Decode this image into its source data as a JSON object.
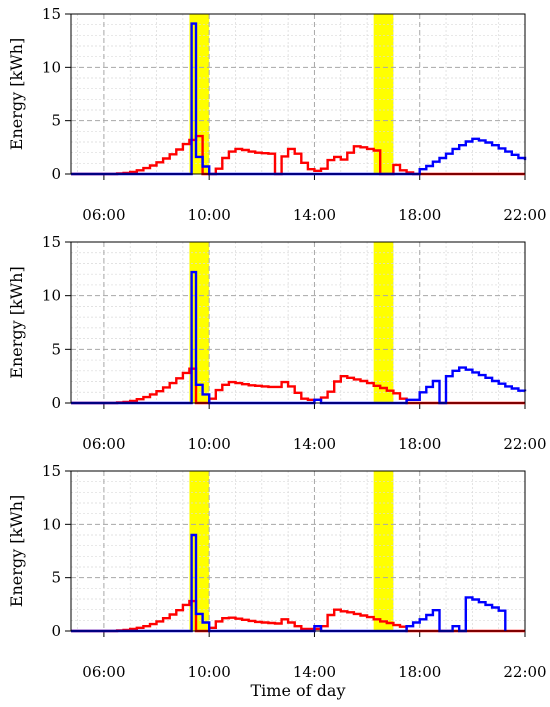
{
  "chart_data": [
    {
      "type": "line",
      "step": true,
      "title": "",
      "xlabel": "",
      "ylabel": "Energy [kWh]",
      "ylim": [
        0,
        15
      ],
      "yticks": [
        "0",
        "5",
        "10",
        "15"
      ],
      "xlim": [
        "04:45",
        "22:00"
      ],
      "xticks": [
        "06:00",
        "10:00",
        "14:00",
        "18:00",
        "22:00"
      ],
      "grid": true,
      "highlight_bands": [
        {
          "from": "09:15",
          "to": "10:00",
          "color": "#ffff00"
        },
        {
          "from": "16:15",
          "to": "17:00",
          "color": "#ffff00"
        }
      ],
      "series": [
        {
          "color": "#ff0000",
          "points": [
            [
              "04:45",
              0
            ],
            [
              "06:00",
              0
            ],
            [
              "06:30",
              0.05
            ],
            [
              "06:45",
              0.1
            ],
            [
              "07:00",
              0.2
            ],
            [
              "07:15",
              0.35
            ],
            [
              "07:30",
              0.55
            ],
            [
              "07:45",
              0.8
            ],
            [
              "08:00",
              1.1
            ],
            [
              "08:15",
              1.45
            ],
            [
              "08:30",
              1.85
            ],
            [
              "08:45",
              2.3
            ],
            [
              "09:00",
              2.8
            ],
            [
              "09:15",
              3.2
            ],
            [
              "09:30",
              3.55
            ],
            [
              "09:45",
              0
            ],
            [
              "10:15",
              0.5
            ],
            [
              "10:30",
              1.5
            ],
            [
              "10:45",
              2.1
            ],
            [
              "11:00",
              2.35
            ],
            [
              "11:15",
              2.25
            ],
            [
              "11:30",
              2.1
            ],
            [
              "11:45",
              2.0
            ],
            [
              "12:00",
              1.95
            ],
            [
              "12:15",
              1.9
            ],
            [
              "12:30",
              0
            ],
            [
              "12:45",
              1.65
            ],
            [
              "13:00",
              2.35
            ],
            [
              "13:15",
              1.9
            ],
            [
              "13:30",
              1.05
            ],
            [
              "13:45",
              0.45
            ],
            [
              "14:00",
              0.3
            ],
            [
              "14:15",
              0.5
            ],
            [
              "14:30",
              1.3
            ],
            [
              "14:45",
              1.6
            ],
            [
              "15:00",
              1.35
            ],
            [
              "15:15",
              2.0
            ],
            [
              "15:30",
              2.6
            ],
            [
              "15:45",
              2.5
            ],
            [
              "16:00",
              2.35
            ],
            [
              "16:15",
              2.2
            ],
            [
              "16:30",
              0
            ],
            [
              "17:00",
              0.85
            ],
            [
              "17:15",
              0.35
            ],
            [
              "17:30",
              0.15
            ],
            [
              "17:45",
              0
            ],
            [
              "22:00",
              0
            ]
          ]
        },
        {
          "color": "#0000ff",
          "points": [
            [
              "04:45",
              0
            ],
            [
              "09:15",
              0
            ],
            [
              "09:20",
              14.1
            ],
            [
              "09:30",
              1.6
            ],
            [
              "09:45",
              0.7
            ],
            [
              "10:00",
              0
            ],
            [
              "17:45",
              0
            ],
            [
              "18:00",
              0.45
            ],
            [
              "18:15",
              0.75
            ],
            [
              "18:30",
              1.15
            ],
            [
              "18:45",
              1.5
            ],
            [
              "19:00",
              1.9
            ],
            [
              "19:15",
              2.35
            ],
            [
              "19:30",
              2.7
            ],
            [
              "19:45",
              3.05
            ],
            [
              "20:00",
              3.3
            ],
            [
              "20:15",
              3.15
            ],
            [
              "20:30",
              2.95
            ],
            [
              "20:45",
              2.7
            ],
            [
              "21:00",
              2.4
            ],
            [
              "21:15",
              2.1
            ],
            [
              "21:30",
              1.8
            ],
            [
              "21:45",
              1.5
            ],
            [
              "22:00",
              1.3
            ]
          ]
        }
      ]
    },
    {
      "type": "line",
      "step": true,
      "title": "",
      "xlabel": "",
      "ylabel": "Energy [kWh]",
      "ylim": [
        0,
        15
      ],
      "yticks": [
        "0",
        "5",
        "10",
        "15"
      ],
      "xlim": [
        "04:45",
        "22:00"
      ],
      "xticks": [
        "06:00",
        "10:00",
        "14:00",
        "18:00",
        "22:00"
      ],
      "grid": true,
      "highlight_bands": [
        {
          "from": "09:15",
          "to": "10:00",
          "color": "#ffff00"
        },
        {
          "from": "16:15",
          "to": "17:00",
          "color": "#ffff00"
        }
      ],
      "series": [
        {
          "color": "#ff0000",
          "points": [
            [
              "04:45",
              0
            ],
            [
              "06:00",
              0
            ],
            [
              "06:30",
              0.05
            ],
            [
              "06:45",
              0.1
            ],
            [
              "07:00",
              0.2
            ],
            [
              "07:15",
              0.35
            ],
            [
              "07:30",
              0.55
            ],
            [
              "07:45",
              0.8
            ],
            [
              "08:00",
              1.1
            ],
            [
              "08:15",
              1.45
            ],
            [
              "08:30",
              1.85
            ],
            [
              "08:45",
              2.3
            ],
            [
              "09:00",
              2.8
            ],
            [
              "09:15",
              3.2
            ],
            [
              "09:30",
              0
            ],
            [
              "10:00",
              0.4
            ],
            [
              "10:15",
              1.2
            ],
            [
              "10:30",
              1.7
            ],
            [
              "10:45",
              1.95
            ],
            [
              "11:00",
              1.85
            ],
            [
              "11:15",
              1.75
            ],
            [
              "11:30",
              1.65
            ],
            [
              "11:45",
              1.6
            ],
            [
              "12:00",
              1.55
            ],
            [
              "12:15",
              1.5
            ],
            [
              "12:30",
              1.5
            ],
            [
              "12:45",
              1.95
            ],
            [
              "13:00",
              1.55
            ],
            [
              "13:15",
              0.95
            ],
            [
              "13:30",
              0.4
            ],
            [
              "13:45",
              0.3
            ],
            [
              "14:00",
              0.3
            ],
            [
              "14:15",
              0.5
            ],
            [
              "14:30",
              1.05
            ],
            [
              "14:45",
              2.0
            ],
            [
              "15:00",
              2.5
            ],
            [
              "15:15",
              2.35
            ],
            [
              "15:30",
              2.2
            ],
            [
              "15:45",
              2.05
            ],
            [
              "16:00",
              1.85
            ],
            [
              "16:15",
              1.6
            ],
            [
              "16:30",
              1.4
            ],
            [
              "16:45",
              1.15
            ],
            [
              "17:00",
              0.9
            ],
            [
              "17:15",
              0.4
            ],
            [
              "17:30",
              0
            ],
            [
              "22:00",
              0
            ]
          ]
        },
        {
          "color": "#0000ff",
          "points": [
            [
              "04:45",
              0
            ],
            [
              "09:15",
              0
            ],
            [
              "09:20",
              12.2
            ],
            [
              "09:30",
              1.7
            ],
            [
              "09:45",
              0.8
            ],
            [
              "10:00",
              0
            ],
            [
              "13:45",
              0
            ],
            [
              "14:00",
              0.3
            ],
            [
              "14:15",
              0
            ],
            [
              "17:15",
              0
            ],
            [
              "17:30",
              0.3
            ],
            [
              "18:00",
              1.0
            ],
            [
              "18:15",
              1.5
            ],
            [
              "18:30",
              2.05
            ],
            [
              "18:45",
              0
            ],
            [
              "19:00",
              2.5
            ],
            [
              "19:15",
              3.0
            ],
            [
              "19:30",
              3.3
            ],
            [
              "19:45",
              3.1
            ],
            [
              "20:00",
              2.85
            ],
            [
              "20:15",
              2.6
            ],
            [
              "20:30",
              2.35
            ],
            [
              "20:45",
              2.05
            ],
            [
              "21:00",
              1.8
            ],
            [
              "21:15",
              1.55
            ],
            [
              "21:30",
              1.35
            ],
            [
              "21:45",
              1.15
            ],
            [
              "22:00",
              1.1
            ]
          ]
        }
      ]
    },
    {
      "type": "line",
      "step": true,
      "title": "",
      "xlabel": "Time of day",
      "ylabel": "Energy [kWh]",
      "ylim": [
        0,
        15
      ],
      "yticks": [
        "0",
        "5",
        "10",
        "15"
      ],
      "xlim": [
        "04:45",
        "22:00"
      ],
      "xticks": [
        "06:00",
        "10:00",
        "14:00",
        "18:00",
        "22:00"
      ],
      "grid": true,
      "highlight_bands": [
        {
          "from": "09:15",
          "to": "10:00",
          "color": "#ffff00"
        },
        {
          "from": "16:15",
          "to": "17:00",
          "color": "#ffff00"
        }
      ],
      "series": [
        {
          "color": "#ff0000",
          "points": [
            [
              "04:45",
              0
            ],
            [
              "06:00",
              0
            ],
            [
              "06:30",
              0.05
            ],
            [
              "06:45",
              0.1
            ],
            [
              "07:00",
              0.2
            ],
            [
              "07:15",
              0.3
            ],
            [
              "07:30",
              0.45
            ],
            [
              "07:45",
              0.65
            ],
            [
              "08:00",
              0.9
            ],
            [
              "08:15",
              1.2
            ],
            [
              "08:30",
              1.55
            ],
            [
              "08:45",
              1.95
            ],
            [
              "09:00",
              2.45
            ],
            [
              "09:15",
              2.8
            ],
            [
              "09:30",
              0
            ],
            [
              "10:00",
              0.3
            ],
            [
              "10:15",
              0.9
            ],
            [
              "10:30",
              1.2
            ],
            [
              "10:45",
              1.25
            ],
            [
              "11:00",
              1.15
            ],
            [
              "11:15",
              1.05
            ],
            [
              "11:30",
              0.95
            ],
            [
              "11:45",
              0.85
            ],
            [
              "12:00",
              0.8
            ],
            [
              "12:15",
              0.75
            ],
            [
              "12:30",
              0.7
            ],
            [
              "12:45",
              1.1
            ],
            [
              "13:00",
              0.8
            ],
            [
              "13:15",
              0.45
            ],
            [
              "13:30",
              0.2
            ],
            [
              "13:45",
              0.2
            ],
            [
              "14:00",
              0.2
            ],
            [
              "14:15",
              0.45
            ],
            [
              "14:30",
              1.5
            ],
            [
              "14:45",
              2.0
            ],
            [
              "15:00",
              1.85
            ],
            [
              "15:15",
              1.75
            ],
            [
              "15:30",
              1.6
            ],
            [
              "15:45",
              1.45
            ],
            [
              "16:00",
              1.3
            ],
            [
              "16:15",
              1.1
            ],
            [
              "16:30",
              0.9
            ],
            [
              "16:45",
              0.75
            ],
            [
              "17:00",
              0.55
            ],
            [
              "17:15",
              0.4
            ],
            [
              "17:30",
              0
            ],
            [
              "22:00",
              0
            ]
          ]
        },
        {
          "color": "#0000ff",
          "points": [
            [
              "04:45",
              0
            ],
            [
              "09:15",
              0
            ],
            [
              "09:20",
              9.0
            ],
            [
              "09:30",
              1.6
            ],
            [
              "09:45",
              0.8
            ],
            [
              "10:00",
              0
            ],
            [
              "13:45",
              0
            ],
            [
              "14:00",
              0.45
            ],
            [
              "14:15",
              0
            ],
            [
              "17:15",
              0
            ],
            [
              "17:30",
              0.45
            ],
            [
              "17:45",
              0.8
            ],
            [
              "18:00",
              1.1
            ],
            [
              "18:15",
              1.5
            ],
            [
              "18:30",
              1.95
            ],
            [
              "18:45",
              0
            ],
            [
              "19:15",
              0.45
            ],
            [
              "19:30",
              0
            ],
            [
              "19:45",
              3.15
            ],
            [
              "20:00",
              2.95
            ],
            [
              "20:15",
              2.7
            ],
            [
              "20:30",
              2.45
            ],
            [
              "20:45",
              2.2
            ],
            [
              "21:00",
              1.9
            ],
            [
              "21:15",
              0
            ]
          ]
        }
      ]
    }
  ]
}
